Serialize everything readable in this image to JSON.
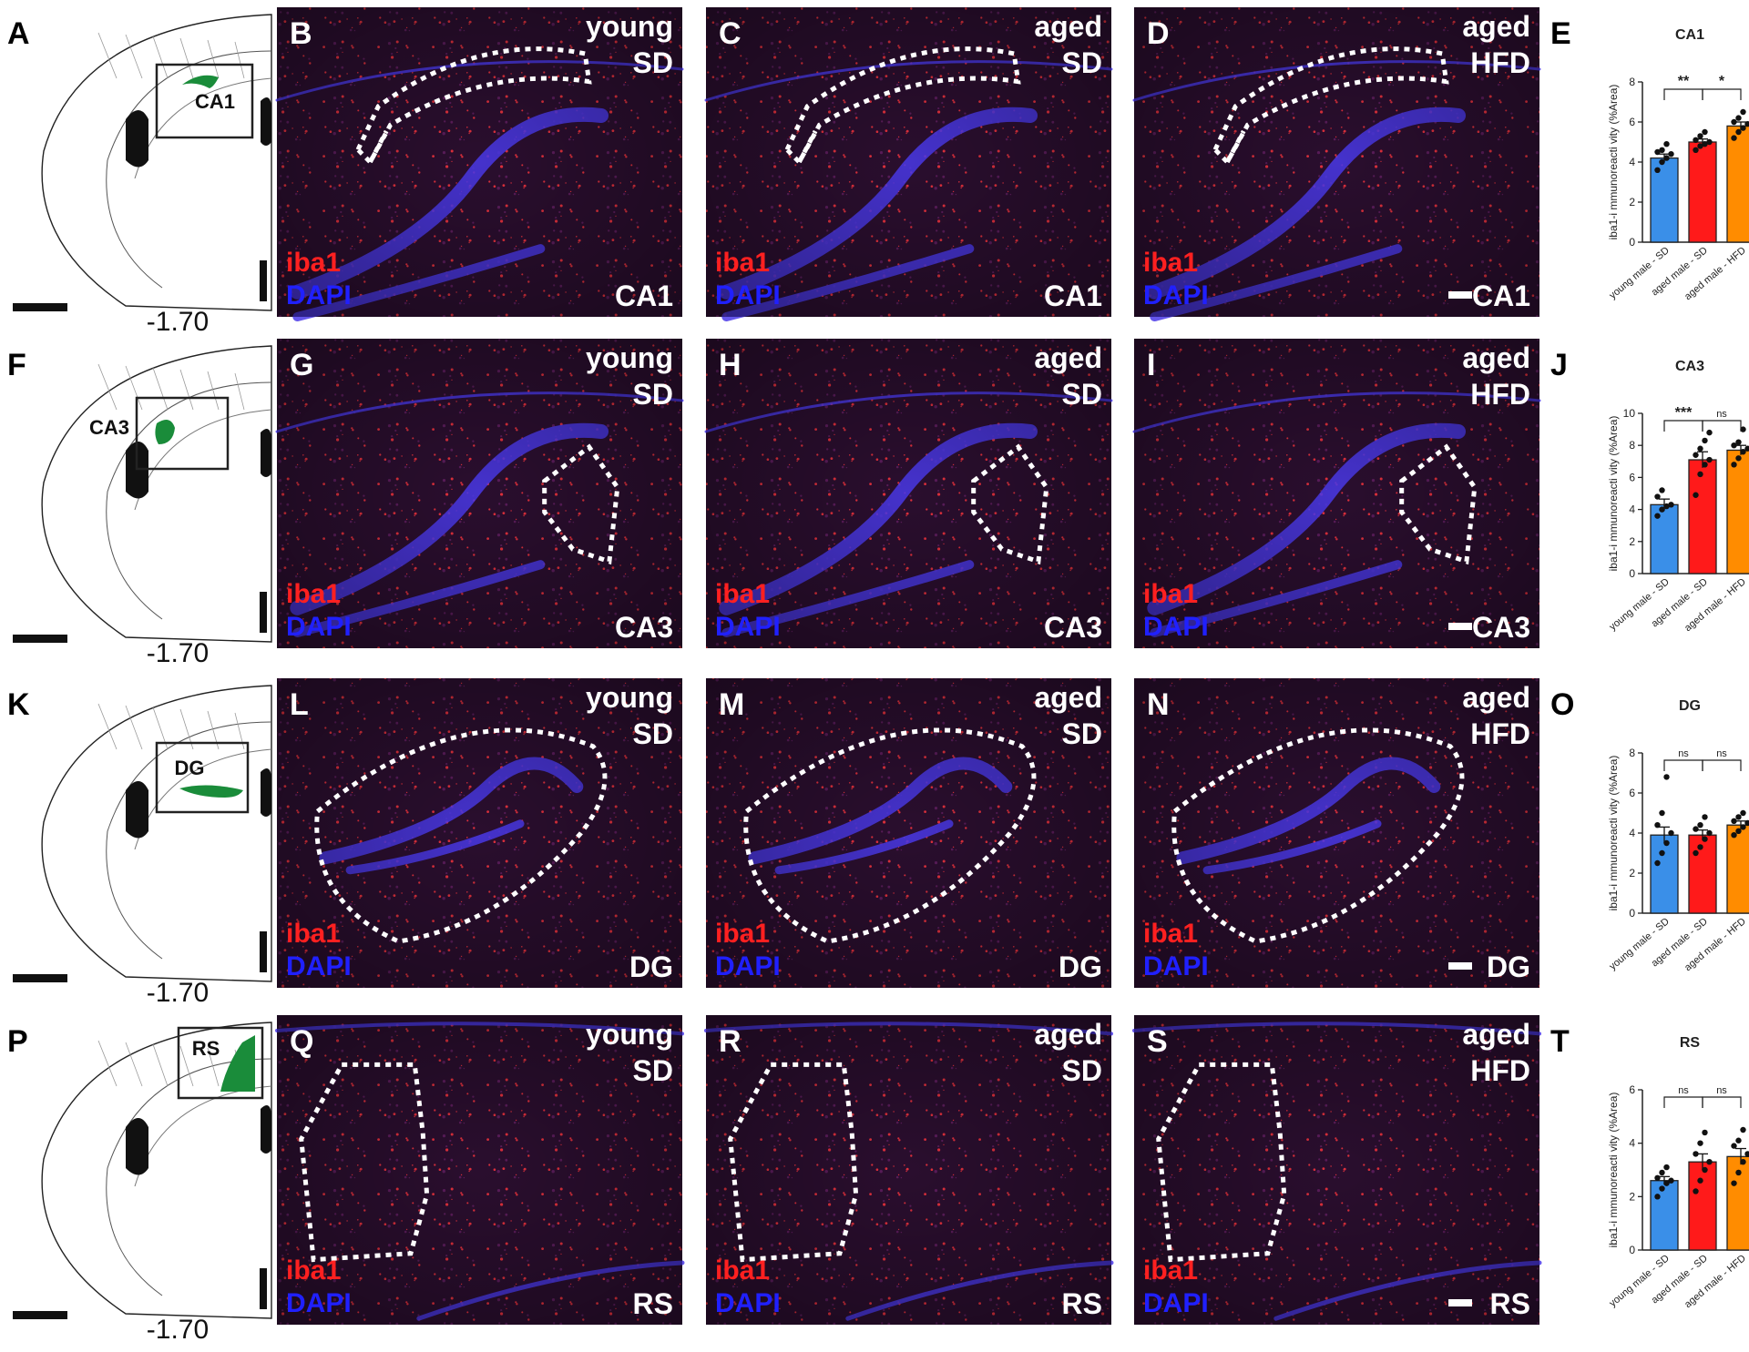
{
  "atlas": {
    "coord": "-1.70"
  },
  "stain": {
    "marker": "iba1",
    "counter": "DAPI"
  },
  "colors": {
    "young_sd": "#3a8fe8",
    "aged_sd": "#ff1a1a",
    "aged_hfd": "#ff8c00",
    "iba1_text": "#ff2020",
    "dapi_text": "#2020ff",
    "region_fill": "#1a8c3a"
  },
  "rows": [
    {
      "region": "CA1",
      "atlas_letter": "A",
      "atlas_box_label": "CA1",
      "panels": [
        {
          "letter": "B",
          "age": "young",
          "diet": "SD",
          "region_label": "CA1"
        },
        {
          "letter": "C",
          "age": "aged",
          "diet": "SD",
          "region_label": "CA1"
        },
        {
          "letter": "D",
          "age": "aged",
          "diet": "HFD",
          "region_label": "CA1"
        }
      ],
      "chart_letter": "E"
    },
    {
      "region": "CA3",
      "atlas_letter": "F",
      "atlas_box_label": "CA3",
      "panels": [
        {
          "letter": "G",
          "age": "young",
          "diet": "SD",
          "region_label": "CA3"
        },
        {
          "letter": "H",
          "age": "aged",
          "diet": "SD",
          "region_label": "CA3"
        },
        {
          "letter": "I",
          "age": "aged",
          "diet": "HFD",
          "region_label": "CA3"
        }
      ],
      "chart_letter": "J"
    },
    {
      "region": "DG",
      "atlas_letter": "K",
      "atlas_box_label": "DG",
      "panels": [
        {
          "letter": "L",
          "age": "young",
          "diet": "SD",
          "region_label": "DG"
        },
        {
          "letter": "M",
          "age": "aged",
          "diet": "SD",
          "region_label": "DG"
        },
        {
          "letter": "N",
          "age": "aged",
          "diet": "HFD",
          "region_label": "DG"
        }
      ],
      "chart_letter": "O"
    },
    {
      "region": "RS",
      "atlas_letter": "P",
      "atlas_box_label": "RS",
      "panels": [
        {
          "letter": "Q",
          "age": "young",
          "diet": "SD",
          "region_label": "RS"
        },
        {
          "letter": "R",
          "age": "aged",
          "diet": "SD",
          "region_label": "RS"
        },
        {
          "letter": "S",
          "age": "aged",
          "diet": "HFD",
          "region_label": "RS"
        }
      ],
      "chart_letter": "T"
    }
  ],
  "chart_data": [
    {
      "type": "bar",
      "title": "CA1",
      "ylabel": "iba1-i mmunoreacti vity (%Area)",
      "categories": [
        "young male - SD",
        "aged male - SD",
        "aged male - HFD"
      ],
      "values": [
        4.2,
        5.0,
        5.8
      ],
      "errors": [
        0.2,
        0.15,
        0.2
      ],
      "points": [
        [
          3.6,
          4.0,
          4.2,
          4.4,
          4.5,
          4.6,
          4.9
        ],
        [
          4.6,
          4.8,
          4.9,
          5.0,
          5.1,
          5.3,
          5.5
        ],
        [
          5.2,
          5.5,
          5.7,
          5.9,
          6.0,
          6.2,
          6.5
        ]
      ],
      "ylim": [
        0,
        8
      ],
      "yticks": [
        0,
        2,
        4,
        6,
        8
      ],
      "significance": [
        "**",
        "*"
      ]
    },
    {
      "type": "bar",
      "title": "CA3",
      "ylabel": "iba1-i mmunoreacti vity (%Area)",
      "categories": [
        "young male - SD",
        "aged male - SD",
        "aged male - HFD"
      ],
      "values": [
        4.3,
        7.1,
        7.7
      ],
      "errors": [
        0.35,
        0.5,
        0.3
      ],
      "points": [
        [
          3.6,
          4.0,
          4.2,
          4.3,
          4.8,
          5.2
        ],
        [
          4.9,
          6.2,
          6.8,
          7.1,
          7.4,
          7.8,
          8.3,
          8.8
        ],
        [
          6.8,
          7.2,
          7.6,
          7.8,
          8.0,
          8.2,
          9.0
        ]
      ],
      "ylim": [
        0,
        10
      ],
      "yticks": [
        0,
        2,
        4,
        6,
        8,
        10
      ],
      "significance": [
        "***",
        "ns"
      ]
    },
    {
      "type": "bar",
      "title": "DG",
      "ylabel": "iba1-i mmunoreacti vity (%Area)",
      "categories": [
        "young male - SD",
        "aged male - SD",
        "aged male - HFD"
      ],
      "values": [
        3.9,
        3.9,
        4.4
      ],
      "errors": [
        0.4,
        0.25,
        0.2
      ],
      "points": [
        [
          2.5,
          3.0,
          3.5,
          4.0,
          4.4,
          5.0,
          6.8
        ],
        [
          3.0,
          3.3,
          3.7,
          4.0,
          4.2,
          4.4,
          4.8
        ],
        [
          3.9,
          4.1,
          4.3,
          4.5,
          4.6,
          4.8,
          5.0
        ]
      ],
      "ylim": [
        0,
        8
      ],
      "yticks": [
        0,
        2,
        4,
        6,
        8
      ],
      "significance": [
        "ns",
        "ns"
      ]
    },
    {
      "type": "bar",
      "title": "RS",
      "ylabel": "iba1-i mmunoreacti vity (%Area)",
      "categories": [
        "young male - SD",
        "aged male - SD",
        "aged male - HFD"
      ],
      "values": [
        2.6,
        3.3,
        3.5
      ],
      "errors": [
        0.15,
        0.3,
        0.3
      ],
      "points": [
        [
          2.0,
          2.3,
          2.5,
          2.6,
          2.7,
          2.9,
          3.1
        ],
        [
          2.2,
          2.6,
          3.0,
          3.3,
          3.6,
          4.0,
          4.4
        ],
        [
          2.5,
          2.9,
          3.3,
          3.6,
          3.9,
          4.1,
          4.5
        ]
      ],
      "ylim": [
        0,
        6
      ],
      "yticks": [
        0,
        2,
        4,
        6
      ],
      "significance": [
        "ns",
        "ns"
      ]
    }
  ]
}
